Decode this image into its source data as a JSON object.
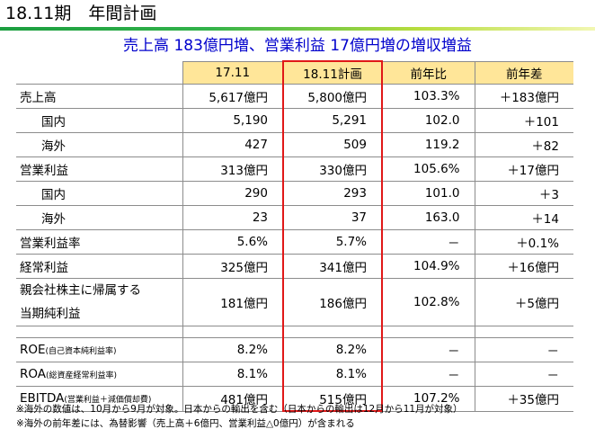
{
  "title": "18.11期　年間計画",
  "headline": "売上高 183億円増、営業利益 17億円増の増収増益",
  "columns": [
    "17.11",
    "18.11計画",
    "前年比",
    "前年差"
  ],
  "rows": [
    {
      "label": "売上高",
      "v1": "5,617億円",
      "v2": "5,800億円",
      "v3": "103.3%",
      "v4": "＋183億円"
    },
    {
      "label": "国内",
      "v1": "5,190",
      "v2": "5,291",
      "v3": "102.0",
      "v4": "＋101"
    },
    {
      "label": "海外",
      "v1": "427",
      "v2": "509",
      "v3": "119.2",
      "v4": "＋82"
    },
    {
      "label": "営業利益",
      "v1": "313億円",
      "v2": "330億円",
      "v3": "105.6%",
      "v4": "＋17億円"
    },
    {
      "label": "国内",
      "v1": "290",
      "v2": "293",
      "v3": "101.0",
      "v4": "＋3"
    },
    {
      "label": "海外",
      "v1": "23",
      "v2": "37",
      "v3": "163.0",
      "v4": "＋14"
    },
    {
      "label": "営業利益率",
      "v1": "5.6%",
      "v2": "5.7%",
      "v3": "－",
      "v4": "＋0.1%"
    },
    {
      "label": "経常利益",
      "v1": "325億円",
      "v2": "341億円",
      "v3": "104.9%",
      "v4": "＋16億円"
    },
    {
      "label_line1": "親会社株主に帰属する",
      "label_line2": "当期純利益",
      "v1": "181億円",
      "v2": "186億円",
      "v3": "102.8%",
      "v4": "＋5億円"
    },
    {
      "label": "ROE",
      "note": "(自己資本純利益率)",
      "v1": "8.2%",
      "v2": "8.2%",
      "v3": "－",
      "v4": "－"
    },
    {
      "label": "ROA",
      "note": "(総資産経常利益率)",
      "v1": "8.1%",
      "v2": "8.1%",
      "v3": "－",
      "v4": "－"
    },
    {
      "label": "EBITDA",
      "note": "(営業利益＋減価償却費)",
      "v1": "481億円",
      "v2": "515億円",
      "v3": "107.2%",
      "v4": "＋35億円"
    }
  ],
  "footnotes": [
    "※海外の数値は、10月から9月が対象。日本からの輸出を含む（日本からの輸出は12月から11月が対象）",
    "※海外の前年差には、為替影響（売上高＋6億円、営業利益△0億円）が含まれる"
  ]
}
